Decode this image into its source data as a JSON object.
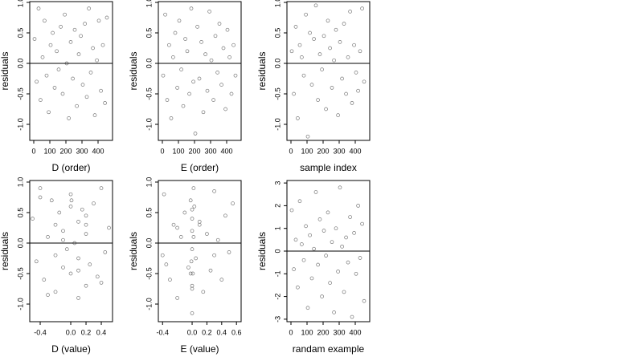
{
  "chart_data": [
    {
      "type": "scatter",
      "x_label": "D (order)",
      "y_label": "residuals",
      "color": "#555555",
      "hline": 0,
      "xlim": [
        -25,
        490
      ],
      "xticks": [
        0,
        100,
        200,
        300,
        400
      ],
      "ylim": [
        -1.263,
        1.013
      ],
      "yticks": [
        {
          "value": -1,
          "label": "-1.0"
        },
        -0.5,
        {
          "value": 0,
          "label": "0.0"
        },
        0.5,
        {
          "value": 1,
          "label": "1.0"
        }
      ],
      "x": [
        5,
        18,
        30,
        42,
        55,
        67,
        80,
        93,
        105,
        118,
        130,
        143,
        155,
        168,
        180,
        193,
        205,
        218,
        230,
        243,
        255,
        268,
        280,
        293,
        305,
        318,
        330,
        343,
        355,
        368,
        380,
        393,
        405,
        418,
        430,
        443,
        455
      ],
      "values": [
        0.4,
        -0.3,
        0.9,
        -0.6,
        0.1,
        0.7,
        -0.2,
        -0.8,
        0.3,
        0.5,
        -0.4,
        0.2,
        -0.1,
        0.6,
        -0.5,
        0.8,
        0.0,
        -0.9,
        0.35,
        -0.25,
        0.55,
        -0.7,
        0.15,
        0.45,
        -0.35,
        0.65,
        -0.55,
        0.9,
        -0.15,
        0.25,
        -0.85,
        0.05,
        0.7,
        -0.45,
        0.3,
        -0.65,
        0.75
      ]
    },
    {
      "type": "scatter",
      "x_label": "E (order)",
      "y_label": "residuals",
      "color": "#555555",
      "hline": 0,
      "xlim": [
        -25,
        490
      ],
      "xticks": [
        0,
        100,
        200,
        300,
        400
      ],
      "ylim": [
        -1.263,
        1.013
      ],
      "yticks": [
        {
          "value": -1,
          "label": "-1.0"
        },
        -0.5,
        {
          "value": 0,
          "label": "0.0"
        },
        0.5,
        {
          "value": 1,
          "label": "1.0"
        }
      ],
      "x": [
        5,
        18,
        30,
        42,
        55,
        67,
        80,
        93,
        105,
        118,
        130,
        143,
        155,
        168,
        180,
        193,
        205,
        218,
        230,
        243,
        255,
        268,
        280,
        293,
        305,
        318,
        330,
        343,
        355,
        368,
        380,
        393,
        405,
        418,
        430,
        443,
        455
      ],
      "values": [
        -0.2,
        0.8,
        -0.6,
        0.3,
        -0.9,
        0.1,
        0.5,
        -0.4,
        0.7,
        -0.1,
        -0.7,
        0.4,
        0.2,
        -0.5,
        0.9,
        -0.3,
        -1.15,
        0.6,
        -0.25,
        0.35,
        -0.8,
        0.15,
        -0.45,
        0.85,
        0.05,
        -0.6,
        0.45,
        -0.15,
        0.65,
        -0.35,
        0.25,
        -0.75,
        0.55,
        0.1,
        -0.5,
        0.3,
        -0.2
      ]
    },
    {
      "type": "scatter",
      "x_label": "sample index",
      "y_label": "residuals",
      "color": "#555555",
      "hline": 0,
      "xlim": [
        -25,
        490
      ],
      "xticks": [
        0,
        100,
        200,
        300,
        400
      ],
      "ylim": [
        -1.263,
        1.013
      ],
      "yticks": [
        {
          "value": -1,
          "label": "-1.0"
        },
        -0.5,
        {
          "value": 0,
          "label": "0.0"
        },
        0.5,
        {
          "value": 1,
          "label": "1.0"
        }
      ],
      "x": [
        5,
        18,
        30,
        42,
        55,
        67,
        80,
        93,
        105,
        118,
        130,
        143,
        155,
        168,
        180,
        193,
        205,
        218,
        230,
        243,
        255,
        268,
        280,
        293,
        305,
        318,
        330,
        343,
        355,
        368,
        380,
        393,
        405,
        418,
        430,
        443,
        455
      ],
      "values": [
        0.2,
        -0.5,
        0.6,
        -0.9,
        0.3,
        0.1,
        -0.2,
        0.8,
        -1.2,
        0.5,
        -0.35,
        0.4,
        0.95,
        -0.6,
        0.15,
        -0.1,
        0.45,
        -0.75,
        0.7,
        0.25,
        -0.4,
        0.05,
        0.55,
        -0.85,
        0.35,
        -0.25,
        0.65,
        -0.5,
        0.1,
        0.85,
        -0.65,
        0.3,
        -0.15,
        -0.45,
        0.2,
        0.9,
        -0.3
      ]
    },
    {
      "type": "scatter",
      "x_label": "D (value)",
      "y_label": "residuals",
      "color": "#555555",
      "hline": 0,
      "xlim": [
        -0.537,
        0.547
      ],
      "xticks": [
        -0.4,
        {
          "value": 0,
          "label": "0.0"
        },
        0.2,
        0.4
      ],
      "ylim": [
        -1.289,
        1.026
      ],
      "yticks": [
        {
          "value": -1,
          "label": "-1.0"
        },
        -0.5,
        {
          "value": 0,
          "label": "0.0"
        },
        0.5,
        {
          "value": 1,
          "label": "1.0"
        }
      ],
      "x": [
        -0.5,
        -0.45,
        -0.4,
        -0.35,
        -0.3,
        -0.25,
        -0.2,
        -0.2,
        -0.2,
        -0.15,
        -0.1,
        -0.1,
        -0.05,
        0,
        0,
        0,
        0.05,
        0.1,
        0.1,
        0.1,
        0.15,
        0.2,
        0.2,
        0.2,
        0.25,
        0.3,
        0.35,
        0.4,
        0.45,
        0.5,
        -0.3,
        -0.1,
        0.01,
        0.1,
        0.2,
        0.4,
        -0.4
      ],
      "values": [
        0.4,
        -0.3,
        0.9,
        -0.6,
        0.1,
        0.7,
        -0.2,
        -0.8,
        0.3,
        0.5,
        -0.4,
        0.2,
        -0.1,
        0.6,
        -0.5,
        0.8,
        0.0,
        -0.9,
        0.35,
        -0.25,
        0.55,
        -0.7,
        0.15,
        0.45,
        -0.35,
        0.65,
        -0.55,
        0.9,
        -0.15,
        0.25,
        -0.85,
        0.05,
        0.7,
        -0.45,
        0.3,
        -0.65,
        0.75
      ]
    },
    {
      "type": "scatter",
      "x_label": "E (value)",
      "y_label": "residuals",
      "color": "#555555",
      "hline": 0,
      "xlim": [
        -0.457,
        0.663
      ],
      "xticks": [
        -0.4,
        {
          "value": 0,
          "label": "0.0"
        },
        0.2,
        0.4,
        0.6
      ],
      "ylim": [
        -1.289,
        1.026
      ],
      "yticks": [
        {
          "value": -1,
          "label": "-1.0"
        },
        -0.5,
        {
          "value": 0,
          "label": "0.0"
        },
        0.5,
        {
          "value": 1,
          "label": "1.0"
        }
      ],
      "x": [
        -0.4,
        -0.38,
        -0.3,
        -0.25,
        -0.2,
        -0.15,
        -0.1,
        -0.05,
        -0.02,
        0,
        0,
        0,
        0,
        0.01,
        0.02,
        -0.01,
        0,
        0.03,
        0.05,
        0.1,
        0.15,
        0.2,
        0.25,
        0.3,
        0.35,
        0.4,
        0.45,
        0.5,
        0.55,
        -0.35,
        -0.2,
        0,
        0,
        0.02,
        -0.02,
        0.1,
        0.3
      ],
      "values": [
        -0.2,
        0.8,
        -0.6,
        0.3,
        -0.9,
        0.1,
        0.5,
        -0.4,
        0.7,
        -0.1,
        -0.7,
        0.4,
        0.2,
        -0.5,
        0.9,
        -0.3,
        -1.15,
        0.6,
        -0.25,
        0.35,
        -0.8,
        0.15,
        -0.45,
        0.85,
        0.05,
        -0.6,
        0.45,
        -0.15,
        0.65,
        -0.35,
        0.25,
        -0.75,
        0.55,
        0.1,
        -0.5,
        0.3,
        -0.2
      ]
    },
    {
      "type": "scatter",
      "x_label": "randam example",
      "y_label": "residuals",
      "color": "#555555",
      "hline": 0,
      "xlim": [
        -25,
        490
      ],
      "xticks": [
        0,
        100,
        200,
        300,
        400
      ],
      "ylim": [
        -3.11,
        3.11
      ],
      "yticks": [
        -3,
        -2,
        -1,
        0,
        1,
        2,
        3
      ],
      "x": [
        5,
        18,
        30,
        42,
        55,
        67,
        80,
        93,
        105,
        118,
        130,
        143,
        155,
        168,
        180,
        193,
        205,
        218,
        230,
        243,
        255,
        268,
        280,
        293,
        305,
        318,
        330,
        343,
        355,
        368,
        380,
        393,
        405,
        418,
        430,
        443,
        455
      ],
      "values": [
        1.8,
        -0.8,
        0.5,
        -1.6,
        2.2,
        0.3,
        -0.4,
        1.1,
        -2.5,
        0.7,
        -1.2,
        0.1,
        2.6,
        -0.6,
        1.4,
        -2.0,
        0.9,
        -0.2,
        1.7,
        -1.4,
        0.4,
        -2.7,
        1.0,
        -0.9,
        2.8,
        0.2,
        -1.8,
        0.6,
        -0.5,
        1.5,
        -2.9,
        0.8,
        -1.0,
        2.0,
        -0.3,
        1.2,
        -2.2
      ]
    }
  ]
}
